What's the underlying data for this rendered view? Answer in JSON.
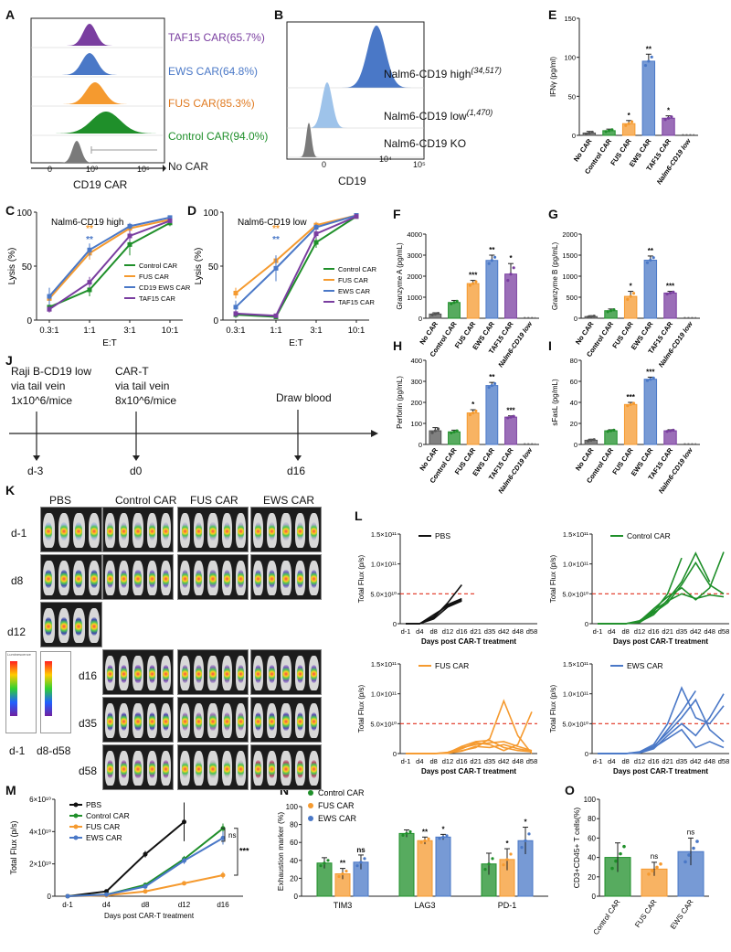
{
  "panel_letters": [
    "A",
    "B",
    "C",
    "D",
    "E",
    "F",
    "G",
    "H",
    "I",
    "J",
    "K",
    "L",
    "M",
    "N",
    "O"
  ],
  "colors": {
    "black": "#111111",
    "control": "#1f8f2a",
    "fus": "#f59a2f",
    "ews": "#4a78c7",
    "ews_light": "#9ec3ea",
    "taf15": "#7a3ea0",
    "grey": "#7a7a7a",
    "red_dashed": "#e0301e"
  },
  "panelA": {
    "rows": [
      {
        "label": "TAF15 CAR(65.7%)",
        "color": "#7a3ea0"
      },
      {
        "label": "EWS CAR(64.8%)",
        "color": "#4a78c7"
      },
      {
        "label": "FUS CAR(85.3%)",
        "color": "#f59a2f"
      },
      {
        "label": "Control CAR(94.0%)",
        "color": "#1f8f2a"
      },
      {
        "label": "No CAR",
        "color": "#7a7a7a"
      }
    ],
    "xlabel": "CD19 CAR",
    "ticks": [
      "0",
      "10³",
      "10⁵"
    ]
  },
  "panelB": {
    "rows": [
      {
        "label": "Nalm6-CD19 high",
        "sup": "(34,517)",
        "color": "#4a78c7"
      },
      {
        "label": "Nalm6-CD19 low",
        "sup": "(1,470)",
        "color": "#9ec3ea"
      },
      {
        "label": "Nalm6-CD19 KO",
        "sup": "",
        "color": "#7a7a7a"
      }
    ],
    "xlabel": "CD19",
    "ticks": [
      "0",
      "10⁴",
      "10⁵"
    ]
  },
  "chart_data": [
    {
      "id": "E",
      "type": "bar",
      "ylabel": "IFNγ (pg/ml)",
      "ylim": [
        0,
        150
      ],
      "yticks": [
        0,
        50,
        100,
        150
      ],
      "categories": [
        "No CAR",
        "Control CAR",
        "FUS CAR",
        "EWS CAR",
        "TAF15 CAR",
        "Nalm6-CD19 low"
      ],
      "values": [
        3,
        6,
        15,
        95,
        22,
        0
      ],
      "errors": [
        2,
        2,
        4,
        9,
        3,
        0
      ],
      "colors": [
        "#555555",
        "#1f8f2a",
        "#f59a2f",
        "#4a78c7",
        "#7a3ea0",
        "#999999"
      ],
      "sig": [
        "",
        "",
        "*",
        "**",
        "*",
        ""
      ]
    },
    {
      "id": "F",
      "type": "bar",
      "ylabel": "Granzyme A (pg/mL)",
      "ylim": [
        0,
        4000
      ],
      "yticks": [
        0,
        1000,
        2000,
        3000,
        4000
      ],
      "categories": [
        "No CAR",
        "Control CAR",
        "FUS CAR",
        "EWS CAR",
        "TAF15 CAR",
        "Nalm6-CD19 low"
      ],
      "values": [
        200,
        750,
        1650,
        2750,
        2100,
        0
      ],
      "errors": [
        60,
        100,
        150,
        250,
        500,
        0
      ],
      "colors": [
        "#555555",
        "#1f8f2a",
        "#f59a2f",
        "#4a78c7",
        "#7a3ea0",
        "#999999"
      ],
      "sig": [
        "",
        "",
        "***",
        "**",
        "*",
        ""
      ]
    },
    {
      "id": "G",
      "type": "bar",
      "ylabel": "Granzyme B (pg/mL)",
      "ylim": [
        0,
        2000
      ],
      "yticks": [
        0,
        500,
        1000,
        1500,
        2000
      ],
      "categories": [
        "No CAR",
        "Control CAR",
        "FUS CAR",
        "EWS CAR",
        "TAF15 CAR",
        "Nalm6-CD19 low"
      ],
      "values": [
        40,
        180,
        520,
        1380,
        600,
        0
      ],
      "errors": [
        20,
        40,
        120,
        100,
        40,
        0
      ],
      "colors": [
        "#555555",
        "#1f8f2a",
        "#f59a2f",
        "#4a78c7",
        "#7a3ea0",
        "#999999"
      ],
      "sig": [
        "",
        "",
        "*",
        "**",
        "***",
        ""
      ]
    },
    {
      "id": "H",
      "type": "bar",
      "ylabel": "Perforin (pg/mL)",
      "ylim": [
        0,
        400
      ],
      "yticks": [
        0,
        100,
        200,
        300,
        400
      ],
      "categories": [
        "No CAR",
        "Control CAR",
        "FUS CAR",
        "EWS CAR",
        "TAF15 CAR",
        "Nalm6-CD19 low"
      ],
      "values": [
        65,
        60,
        150,
        280,
        130,
        0
      ],
      "errors": [
        15,
        8,
        15,
        15,
        6,
        0
      ],
      "colors": [
        "#555555",
        "#1f8f2a",
        "#f59a2f",
        "#4a78c7",
        "#7a3ea0",
        "#999999"
      ],
      "sig": [
        "",
        "",
        "*",
        "**",
        "***",
        ""
      ]
    },
    {
      "id": "I",
      "type": "bar",
      "ylabel": "sFasL (pg/mL)",
      "ylim": [
        0,
        80
      ],
      "yticks": [
        0,
        20,
        40,
        60,
        80
      ],
      "categories": [
        "No CAR",
        "Control CAR",
        "FUS CAR",
        "EWS CAR",
        "TAF15 CAR",
        "Nalm6-CD19 low"
      ],
      "values": [
        4,
        13,
        38,
        62,
        13,
        0
      ],
      "errors": [
        1,
        1,
        2,
        2,
        1,
        0
      ],
      "colors": [
        "#555555",
        "#1f8f2a",
        "#f59a2f",
        "#4a78c7",
        "#7a3ea0",
        "#999999"
      ],
      "sig": [
        "",
        "",
        "***",
        "***",
        "",
        ""
      ]
    },
    {
      "id": "C",
      "type": "line",
      "title": "Nalm6-CD19 high",
      "xlabel": "E:T",
      "ylabel": "Lysis (%)",
      "categories": [
        "0.3:1",
        "1:1",
        "3:1",
        "10:1"
      ],
      "ylim": [
        0,
        100
      ],
      "yticks": [
        0,
        50,
        100
      ],
      "series": [
        {
          "name": "Control CAR",
          "color": "#1f8f2a",
          "values": [
            12,
            28,
            70,
            90
          ],
          "errors": [
            3,
            6,
            10,
            3
          ]
        },
        {
          "name": "FUS CAR",
          "color": "#f59a2f",
          "values": [
            20,
            62,
            85,
            93
          ],
          "errors": [
            5,
            6,
            3,
            2
          ]
        },
        {
          "name": "CD19 EWS CAR",
          "color": "#4a78c7",
          "values": [
            22,
            65,
            87,
            95
          ],
          "errors": [
            8,
            6,
            3,
            2
          ]
        },
        {
          "name": "TAF15 CAR",
          "color": "#7a3ea0",
          "values": [
            10,
            35,
            78,
            92
          ],
          "errors": [
            3,
            5,
            5,
            2
          ]
        }
      ],
      "annotations": [
        "**",
        "**"
      ]
    },
    {
      "id": "D",
      "type": "line",
      "title": "Nalm6-CD19 low",
      "xlabel": "E:T",
      "ylabel": "Lysis (%)",
      "categories": [
        "0.3:1",
        "1:1",
        "3:1",
        "10:1"
      ],
      "ylim": [
        0,
        100
      ],
      "yticks": [
        0,
        50,
        100
      ],
      "series": [
        {
          "name": "Control CAR",
          "color": "#1f8f2a",
          "values": [
            5,
            3,
            72,
            96
          ],
          "errors": [
            3,
            2,
            5,
            2
          ]
        },
        {
          "name": "FUS CAR",
          "color": "#f59a2f",
          "values": [
            25,
            55,
            88,
            97
          ],
          "errors": [
            5,
            5,
            3,
            1
          ]
        },
        {
          "name": "EWS CAR",
          "color": "#4a78c7",
          "values": [
            12,
            48,
            86,
            97
          ],
          "errors": [
            6,
            12,
            3,
            1
          ]
        },
        {
          "name": "TAF15 CAR",
          "color": "#7a3ea0",
          "values": [
            6,
            4,
            80,
            96
          ],
          "errors": [
            3,
            2,
            4,
            1
          ]
        }
      ],
      "annotations": [
        "**",
        "**"
      ]
    },
    {
      "id": "M",
      "type": "line",
      "xlabel": "Days post CAR-T treatment",
      "ylabel": "Total Flux (p/s)",
      "categories": [
        "d-1",
        "d4",
        "d8",
        "d12",
        "d16"
      ],
      "yticks_labels": [
        "0",
        "2×10¹⁰",
        "4×10¹⁰",
        "6×10¹⁰"
      ],
      "ylim": [
        0,
        60000000000.0
      ],
      "series": [
        {
          "name": "PBS",
          "color": "#111111",
          "values": [
            0,
            3000000000.0,
            26000000000.0,
            46000000000.0,
            null
          ],
          "errors": [
            0,
            500000000.0,
            2000000000.0,
            12000000000.0,
            0
          ]
        },
        {
          "name": "Control CAR",
          "color": "#1f8f2a",
          "values": [
            0,
            1000000000.0,
            7000000000.0,
            23000000000.0,
            42000000000.0
          ],
          "errors": [
            0,
            300000000.0,
            1000000000.0,
            2000000000.0,
            3000000000.0
          ]
        },
        {
          "name": "FUS CAR",
          "color": "#f59a2f",
          "values": [
            0,
            500000000.0,
            3000000000.0,
            8000000000.0,
            13000000000.0
          ],
          "errors": [
            0,
            200000000.0,
            500000000.0,
            1000000000.0,
            2000000000.0
          ]
        },
        {
          "name": "EWS CAR",
          "color": "#4a78c7",
          "values": [
            0,
            1000000000.0,
            6000000000.0,
            22000000000.0,
            36000000000.0
          ],
          "errors": [
            0,
            300000000.0,
            1000000000.0,
            2000000000.0,
            4000000000.0
          ]
        }
      ],
      "annotations": [
        "ns",
        "***"
      ]
    },
    {
      "id": "N",
      "type": "bar",
      "ylabel": "Exhaustion marker (%)",
      "ylim": [
        0,
        100
      ],
      "yticks": [
        0,
        20,
        40,
        60,
        80,
        100
      ],
      "categories": [
        "TIM3",
        "LAG3",
        "PD-1"
      ],
      "series": [
        {
          "name": "Control CAR",
          "color": "#1f8f2a",
          "values": [
            37,
            70,
            36
          ],
          "errors": [
            6,
            4,
            12
          ],
          "sig": [
            "",
            "",
            ""
          ]
        },
        {
          "name": "FUS CAR",
          "color": "#f59a2f",
          "values": [
            25,
            62,
            41
          ],
          "errors": [
            6,
            4,
            12
          ],
          "sig": [
            "**",
            "**",
            "*"
          ]
        },
        {
          "name": "EWS CAR",
          "color": "#4a78c7",
          "values": [
            38,
            66,
            62
          ],
          "errors": [
            8,
            3,
            15
          ],
          "sig": [
            "ns",
            "*",
            "*"
          ]
        }
      ]
    },
    {
      "id": "O",
      "type": "bar",
      "ylabel": "CD3+CD45+ T cells(%)",
      "ylim": [
        0,
        100
      ],
      "yticks": [
        0,
        20,
        40,
        60,
        80,
        100
      ],
      "categories": [
        "Control CAR",
        "FUS CAR",
        "EWS CAR"
      ],
      "values": [
        40,
        28,
        46
      ],
      "errors": [
        15,
        7,
        14
      ],
      "colors": [
        "#1f8f2a",
        "#f59a2f",
        "#4a78c7"
      ],
      "sig": [
        "",
        "ns",
        "ns"
      ]
    },
    {
      "id": "L",
      "type": "line",
      "xlabel": "Days post CAR-T treatment",
      "ylabel": "Total Flux (p/s)",
      "categories": [
        "d-1",
        "d4",
        "d8",
        "d12",
        "d16",
        "d21",
        "d35",
        "d42",
        "d48",
        "d58"
      ],
      "yticks_labels": [
        "0",
        "5.0×10¹⁰",
        "1.0×10¹¹",
        "1.5×10¹¹"
      ],
      "ylim": [
        0,
        150000000000.0
      ],
      "threshold": 50000000000.0,
      "panels": [
        {
          "name": "PBS",
          "color": "#111111",
          "lines": [
            [
              0,
              0,
              10000000000.0,
              35000000000.0,
              65000000000.0
            ],
            [
              0,
              0,
              15000000000.0,
              30000000000.0,
              40000000000.0
            ],
            [
              0,
              0,
              12000000000.0,
              32000000000.0,
              42000000000.0
            ],
            [
              0,
              0,
              8000000000.0,
              28000000000.0,
              38000000000.0
            ]
          ]
        },
        {
          "name": "Control CAR",
          "color": "#1f8f2a",
          "lines": [
            [
              0,
              0,
              0,
              5000000000.0,
              20000000000.0,
              50000000000.0,
              110000000000.0
            ],
            [
              0,
              0,
              0,
              3000000000.0,
              15000000000.0,
              40000000000.0,
              70000000000.0,
              118000000000.0,
              70000000000.0
            ],
            [
              0,
              0,
              0,
              4000000000.0,
              25000000000.0,
              45000000000.0,
              60000000000.0,
              40000000000.0,
              60000000000.0,
              120000000000.0
            ],
            [
              0,
              0,
              0,
              2000000000.0,
              18000000000.0,
              35000000000.0,
              65000000000.0,
              102000000000.0,
              65000000000.0,
              50000000000.0
            ],
            [
              0,
              0,
              0,
              3000000000.0,
              22000000000.0,
              38000000000.0,
              50000000000.0,
              42000000000.0,
              48000000000.0,
              45000000000.0
            ]
          ]
        },
        {
          "name": "FUS CAR",
          "color": "#f59a2f",
          "lines": [
            [
              0,
              0,
              0,
              1000000000.0,
              5000000000.0,
              10000000000.0,
              25000000000.0,
              88000000000.0,
              30000000000.0,
              0
            ],
            [
              0,
              0,
              0,
              2000000000.0,
              10000000000.0,
              15000000000.0,
              18000000000.0,
              20000000000.0,
              12000000000.0,
              5000000000.0
            ],
            [
              0,
              0,
              0,
              1000000000.0,
              8000000000.0,
              18000000000.0,
              15000000000.0,
              5000000000.0,
              15000000000.0,
              70000000000.0
            ],
            [
              0,
              0,
              0,
              500000000.0,
              4000000000.0,
              12000000000.0,
              10000000000.0,
              15000000000.0,
              8000000000.0,
              4000000000.0
            ],
            [
              0,
              0,
              0,
              1000000000.0,
              12000000000.0,
              20000000000.0,
              22000000000.0,
              10000000000.0,
              5000000000.0,
              3000000000.0
            ]
          ]
        },
        {
          "name": "EWS CAR",
          "color": "#4a78c7",
          "lines": [
            [
              0,
              0,
              0,
              2000000000.0,
              10000000000.0,
              40000000000.0,
              70000000000.0,
              105000000000.0
            ],
            [
              0,
              0,
              0,
              3000000000.0,
              15000000000.0,
              50000000000.0,
              110000000000.0,
              60000000000.0,
              50000000000.0,
              80000000000.0
            ],
            [
              0,
              0,
              0,
              2000000000.0,
              12000000000.0,
              35000000000.0,
              60000000000.0,
              90000000000.0,
              40000000000.0,
              20000000000.0
            ],
            [
              0,
              0,
              0,
              1000000000.0,
              8000000000.0,
              30000000000.0,
              50000000000.0,
              30000000000.0,
              60000000000.0,
              100000000000.0
            ],
            [
              0,
              0,
              0,
              2000000000.0,
              10000000000.0,
              25000000000.0,
              40000000000.0,
              10000000000.0,
              20000000000.0,
              10000000000.0
            ]
          ]
        }
      ]
    }
  ],
  "panelJ": {
    "steps": [
      {
        "text": [
          "Raji B-CD19 low",
          "via tail vein",
          "1x10^6/mice"
        ],
        "day": "d-3"
      },
      {
        "text": [
          "CAR-T",
          "via tail vein",
          "8x10^6/mice"
        ],
        "day": "d0"
      },
      {
        "text": [
          "Draw blood"
        ],
        "day": "d16"
      }
    ]
  },
  "panelK": {
    "groups": [
      "PBS",
      "Control CAR",
      "FUS CAR",
      "EWS CAR"
    ],
    "days": [
      "d-1",
      "d8",
      "d12",
      "d16",
      "d35",
      "d58"
    ],
    "scale_labels": [
      "d-1",
      "d8-d58"
    ],
    "scale_title": "Luminescence"
  }
}
